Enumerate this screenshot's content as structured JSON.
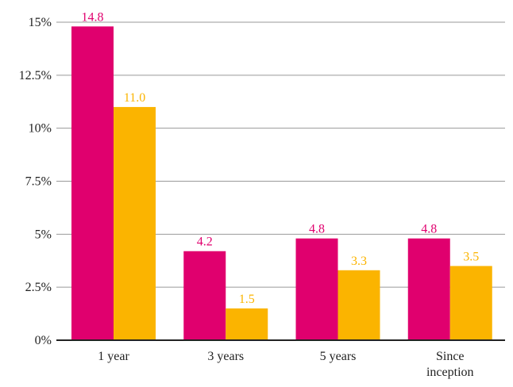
{
  "chart_data": {
    "type": "bar",
    "categories": [
      [
        "1 year"
      ],
      [
        "3 years"
      ],
      [
        "5 years"
      ],
      [
        "Since",
        "inception"
      ]
    ],
    "series": [
      {
        "values": [
          14.8,
          4.2,
          4.8,
          4.8
        ],
        "labels": [
          "14.8",
          "4.2",
          "4.8",
          "4.8"
        ],
        "color": "#e0006e"
      },
      {
        "values": [
          11.0,
          1.5,
          3.3,
          3.5
        ],
        "labels": [
          "11.0",
          "1.5",
          "3.3",
          "3.5"
        ],
        "color": "#fbb400"
      }
    ],
    "y_ticks": [
      {
        "value": 0,
        "label": "0%"
      },
      {
        "value": 2.5,
        "label": "2.5%"
      },
      {
        "value": 5,
        "label": "5%"
      },
      {
        "value": 7.5,
        "label": "7.5%"
      },
      {
        "value": 10,
        "label": "10%"
      },
      {
        "value": 12.5,
        "label": "12.5%"
      },
      {
        "value": 15,
        "label": "15%"
      }
    ],
    "ylim": [
      0,
      15
    ],
    "title": "",
    "xlabel": "",
    "ylabel": "",
    "grid": true,
    "legend": "none"
  }
}
